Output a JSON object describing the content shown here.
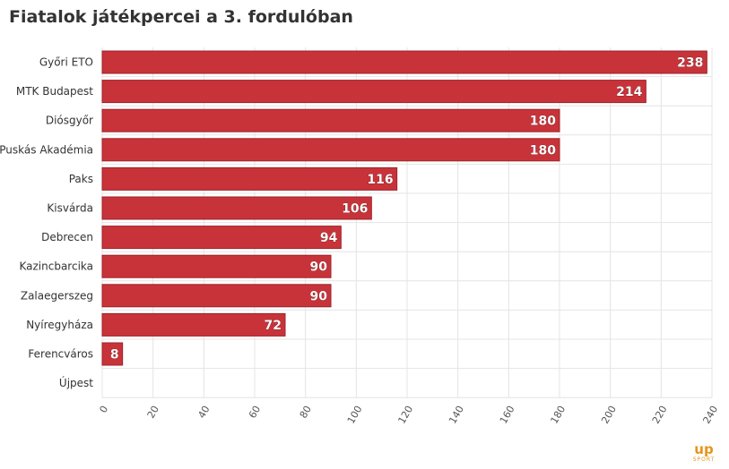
{
  "title": "Fiatalok játékpercei a 3. fordulóban",
  "colors": {
    "bar": "#c8333a",
    "bar_stroke": "#9e2128",
    "grid": "#e4e4e4",
    "text": "#333333",
    "logo": "#e8941a"
  },
  "logo": {
    "main": "up",
    "sub": "SPORT"
  },
  "chart_data": {
    "type": "bar",
    "orientation": "horizontal",
    "title": "Fiatalok játékpercei a 3. fordulóban",
    "categories": [
      "Győri ETO",
      "MTK Budapest",
      "Diósgyőr",
      "Puskás Akadémia",
      "Paks",
      "Kisvárda",
      "Debrecen",
      "Kazincbarcika",
      "Zalaegerszeg",
      "Nyíregyháza",
      "Ferencváros",
      "Újpest"
    ],
    "values": [
      238,
      214,
      180,
      180,
      116,
      106,
      94,
      90,
      90,
      72,
      8,
      0
    ],
    "data_labels": [
      "238",
      "214",
      "180",
      "180",
      "116",
      "106",
      "94",
      "90",
      "90",
      "72",
      "8",
      ""
    ],
    "xlim": [
      0,
      240
    ],
    "xticks": [
      0,
      20,
      40,
      60,
      80,
      100,
      120,
      140,
      160,
      180,
      200,
      220,
      240
    ],
    "xtick_labels": [
      "0",
      "20",
      "40",
      "60",
      "80",
      "100",
      "120",
      "140",
      "160",
      "180",
      "200",
      "220",
      "240"
    ],
    "xtick_rotation": "-60deg",
    "grid": true,
    "legend": false
  }
}
